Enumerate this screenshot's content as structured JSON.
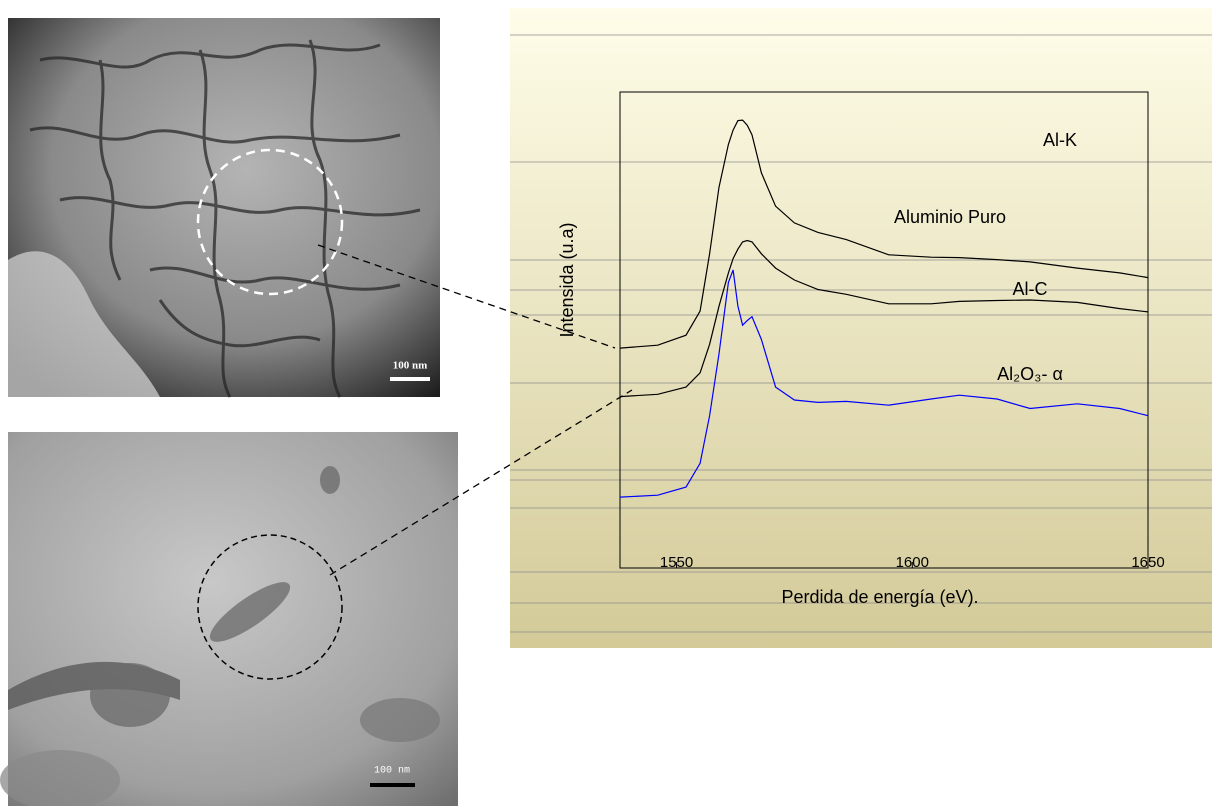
{
  "chart_data": {
    "type": "line",
    "xlabel": "Perdida de energía (eV).",
    "ylabel": "Intensida (u.a)",
    "annotation": "Al-K",
    "xlim": [
      1538,
      1650
    ],
    "ylim": [
      0,
      100
    ],
    "xticks": [
      1550,
      1600,
      1650
    ],
    "x": [
      1538,
      1546,
      1552,
      1555,
      1557,
      1559,
      1561,
      1562,
      1563,
      1564,
      1565,
      1566,
      1568,
      1571,
      1575,
      1580,
      1586,
      1595,
      1604,
      1610,
      1618,
      1625,
      1635,
      1644,
      1650
    ],
    "series": [
      {
        "name": "Aluminio Puro",
        "color": "#000000",
        "values": [
          46.2,
          46.8,
          48.9,
          54,
          66,
          80,
          89,
          92,
          94,
          94.1,
          93,
          91,
          83,
          76,
          72.5,
          70.5,
          69,
          65.8,
          65.3,
          65.2,
          64.8,
          64.3,
          63,
          62,
          61
        ]
      },
      {
        "name": "Al-C",
        "color": "#000000",
        "values": [
          36,
          36.5,
          38,
          41,
          47,
          55,
          62,
          65,
          67,
          68.5,
          68.8,
          68.5,
          66,
          63,
          60.5,
          58.5,
          57.5,
          55.5,
          55.5,
          56,
          56.2,
          56.3,
          55.8,
          54.5,
          53.8
        ]
      },
      {
        "name": "Al₂O₃- α",
        "color": "#0000ff",
        "values": [
          14.9,
          15.3,
          17,
          22,
          32,
          45,
          60,
          62.6,
          55,
          51,
          52,
          52.8,
          48,
          38,
          35.3,
          34.8,
          35,
          34.2,
          35.5,
          36.3,
          35.5,
          33.5,
          34.5,
          33.5,
          32
        ]
      }
    ]
  },
  "micrographs": [
    {
      "scale_label": "100 nm"
    },
    {
      "scale_label": "100 nm"
    }
  ]
}
